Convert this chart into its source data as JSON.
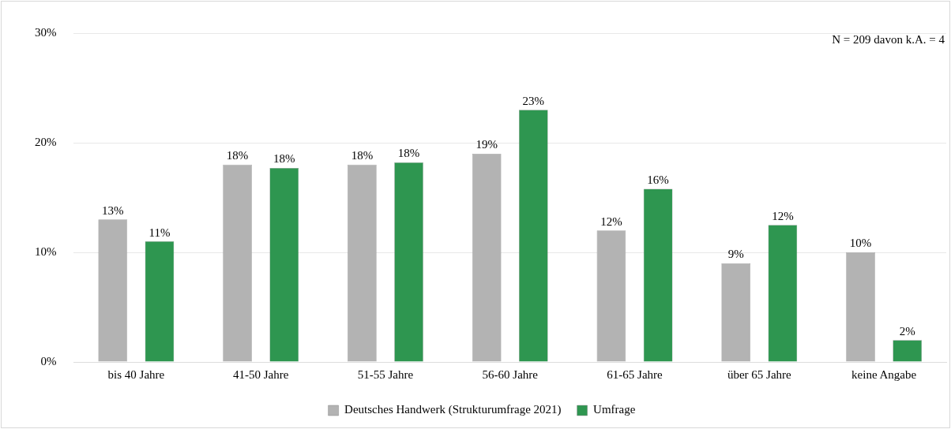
{
  "chart_data": {
    "type": "bar",
    "categories": [
      "bis 40 Jahre",
      "41-50 Jahre",
      "51-55 Jahre",
      "56-60 Jahre",
      "61-65 Jahre",
      "über 65 Jahre",
      "keine Angabe"
    ],
    "series": [
      {
        "name": "Deutsches Handwerk (Strukturumfrage 2021)",
        "color": "#b3b3b3",
        "values": [
          13,
          18,
          18,
          19,
          12,
          9,
          10
        ],
        "value_labels": [
          "13%",
          "18%",
          "18%",
          "19%",
          "12%",
          "9%",
          "10%"
        ]
      },
      {
        "name": "Umfrage",
        "color": "#2e9650",
        "values": [
          11,
          17.7,
          18.2,
          23,
          15.8,
          12.5,
          2
        ],
        "value_labels": [
          "11%",
          "18%",
          "18%",
          "23%",
          "16%",
          "12%",
          "2%"
        ]
      }
    ],
    "ylim": [
      0,
      30
    ],
    "yticks": [
      {
        "value": 0,
        "label": "0%"
      },
      {
        "value": 10,
        "label": "10%"
      },
      {
        "value": 20,
        "label": "20%"
      },
      {
        "value": 30,
        "label": "30%"
      }
    ],
    "grid": "y",
    "legend": "bottom",
    "annotations": [
      "N = 209 davon k.A. = 4"
    ]
  }
}
